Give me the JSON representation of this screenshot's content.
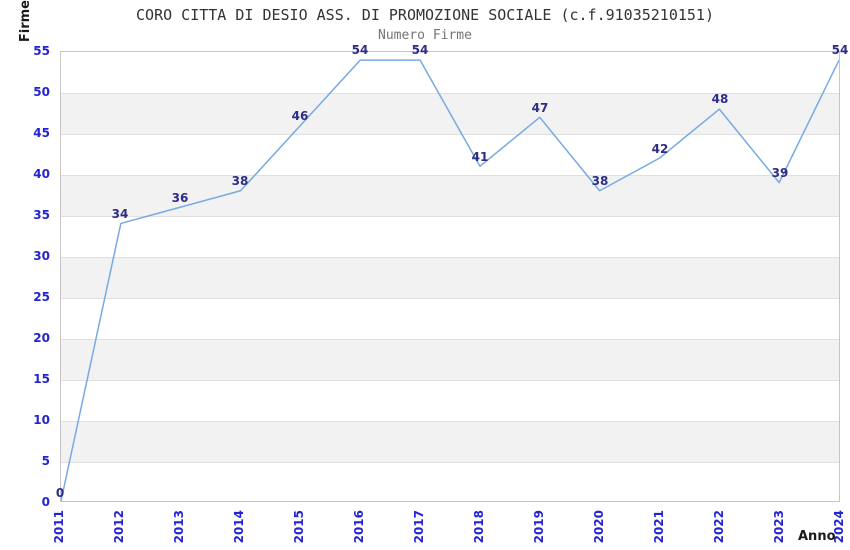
{
  "title": "CORO CITTA DI DESIO ASS. DI PROMOZIONE SOCIALE (c.f.91035210151)",
  "subtitle": "Numero Firme",
  "chart_data": {
    "type": "line",
    "title": "CORO CITTA DI DESIO ASS. DI PROMOZIONE SOCIALE (c.f.91035210151)",
    "subtitle": "Numero Firme",
    "xlabel": "Anno",
    "ylabel": "Firme",
    "x": [
      2011,
      2012,
      2013,
      2014,
      2015,
      2016,
      2017,
      2018,
      2019,
      2020,
      2021,
      2022,
      2023,
      2024
    ],
    "values": [
      0,
      34,
      36,
      38,
      46,
      54,
      54,
      41,
      47,
      38,
      42,
      48,
      39,
      54
    ],
    "series": [
      {
        "name": "Numero Firme",
        "values": [
          0,
          34,
          36,
          38,
          46,
          54,
          54,
          41,
          47,
          38,
          42,
          48,
          39,
          54
        ]
      }
    ],
    "yticks": [
      0,
      5,
      10,
      15,
      20,
      25,
      30,
      35,
      40,
      45,
      50,
      55
    ],
    "ylim": [
      0,
      55
    ],
    "ytick_step": 5,
    "grid": "horizontal gridlines with alternating shaded bands",
    "data_labels_shown": true,
    "legend_position": "none",
    "colors": {
      "line": "#76aae1",
      "band_fill": "#f2f2f2",
      "gridline": "#e0e0e0",
      "plot_border": "#c6c6c6",
      "tick_text": "#2323d2",
      "value_label_text": "#2d2d86",
      "title_text": "#333333",
      "subtitle_text": "#757575",
      "axis_title_text": "#1a1a1a",
      "background": "#ffffff"
    }
  }
}
